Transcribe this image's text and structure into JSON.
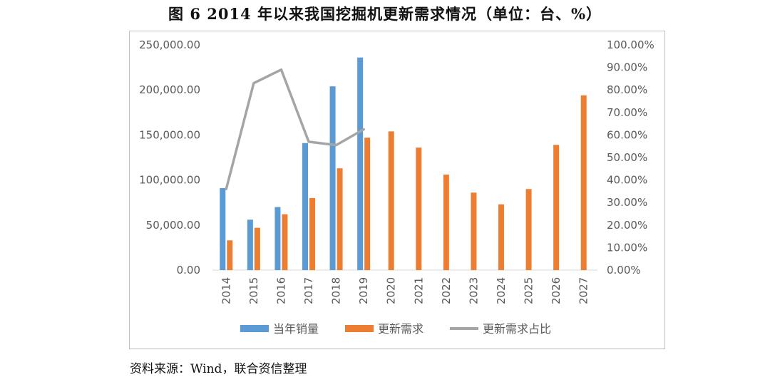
{
  "title": "图 6   2014 年以来我国挖掘机更新需求情况（单位：台、%）",
  "source": "资料来源：Wind，联合资信整理",
  "colors": {
    "sales": "#5b9bd5",
    "demand": "#ed7d31",
    "ratio": "#a5a5a5",
    "axis": "#d9d9d9",
    "text": "#595959"
  },
  "chart_data": {
    "type": "bar",
    "categories": [
      "2014",
      "2015",
      "2016",
      "2017",
      "2018",
      "2019",
      "2020",
      "2021",
      "2022",
      "2023",
      "2024",
      "2025",
      "2026",
      "2027"
    ],
    "series": [
      {
        "name": "当年销量",
        "type": "bar",
        "axis": "left",
        "values": [
          91000,
          56000,
          70000,
          141000,
          204000,
          236000,
          null,
          null,
          null,
          null,
          null,
          null,
          null,
          null
        ]
      },
      {
        "name": "更新需求",
        "type": "bar",
        "axis": "left",
        "values": [
          33000,
          47000,
          62000,
          80000,
          113000,
          147000,
          154000,
          136000,
          106000,
          86000,
          73000,
          90000,
          139000,
          194000
        ]
      },
      {
        "name": "更新需求占比",
        "type": "line",
        "axis": "right",
        "values": [
          0.36,
          0.83,
          0.89,
          0.57,
          0.555,
          0.625,
          null,
          null,
          null,
          null,
          null,
          null,
          null,
          null
        ]
      }
    ],
    "left_axis": {
      "ticks": [
        "0.00",
        "50,000.00",
        "100,000.00",
        "150,000.00",
        "200,000.00",
        "250,000.00"
      ],
      "ylim": [
        0,
        250000
      ]
    },
    "right_axis": {
      "ticks": [
        "0.00%",
        "10.00%",
        "20.00%",
        "30.00%",
        "40.00%",
        "50.00%",
        "60.00%",
        "70.00%",
        "80.00%",
        "90.00%",
        "100.00%"
      ],
      "ylim": [
        0,
        1
      ]
    },
    "legend_position": "bottom"
  }
}
